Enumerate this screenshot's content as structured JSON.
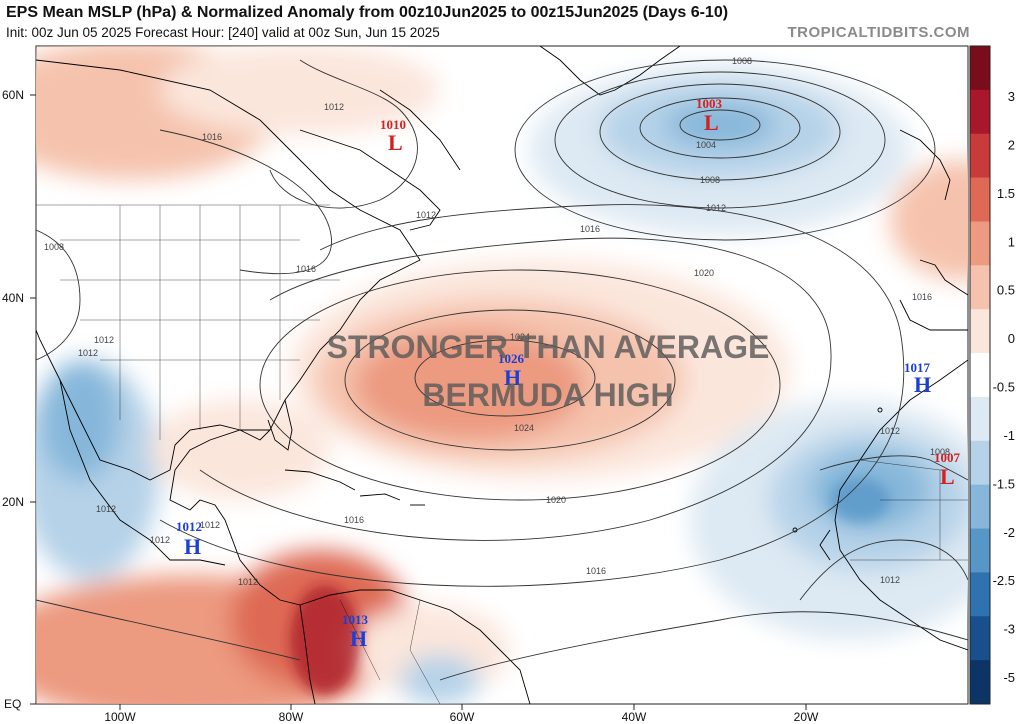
{
  "header": {
    "title": "EPS Mean MSLP (hPa) & Normalized Anomaly from 00z10Jun2025 to 00z15Jun2025 (Days 6-10)",
    "subtitle": "Init: 00z Jun 05 2025   Forecast Hour: [240]   valid at 00z Sun, Jun 15 2025",
    "brand": "TROPICALTIDBITS.COM"
  },
  "map": {
    "lat_ticks": [
      "60N",
      "40N",
      "20N",
      "EQ"
    ],
    "lon_ticks": [
      "100W",
      "80W",
      "60W",
      "40W",
      "20W"
    ],
    "overlay_text": [
      "STRONGER THAN AVERAGE",
      "BERMUDA HIGH"
    ],
    "isobar_labels": [
      "1008",
      "1004",
      "1008",
      "1012",
      "1016",
      "1020",
      "1024",
      "1024",
      "1020",
      "1016",
      "1016",
      "1012",
      "1016",
      "1012",
      "1008",
      "1012",
      "1012",
      "1016",
      "1012",
      "1012",
      "1008",
      "1012",
      "1012",
      "1016",
      "1012",
      "1012"
    ],
    "pressure_centers": [
      {
        "type": "L",
        "value": "1010",
        "color": "#d42020"
      },
      {
        "type": "L",
        "value": "1003",
        "color": "#d42020"
      },
      {
        "type": "H",
        "value": "1026",
        "color": "#1a3fd6"
      },
      {
        "type": "H",
        "value": "1017",
        "color": "#1a3fd6"
      },
      {
        "type": "L",
        "value": "1007",
        "color": "#d42020"
      },
      {
        "type": "H",
        "value": "1012",
        "color": "#1a3fd6"
      },
      {
        "type": "H",
        "value": "1013",
        "color": "#1a3fd6"
      }
    ]
  },
  "colorbar": {
    "labels": [
      "3",
      "2",
      "1.5",
      "1",
      "0.5",
      "0",
      "-0.5",
      "-1",
      "-1.5",
      "-2",
      "-2.5",
      "-3",
      "-5"
    ],
    "colors": [
      "#7a0d1c",
      "#a8172a",
      "#c93a3a",
      "#de6a55",
      "#ec9a80",
      "#f5c3ad",
      "#fbe6dc",
      "#ffffff",
      "#dde9f3",
      "#b5d2e8",
      "#86b7da",
      "#5797c8",
      "#2e72b0",
      "#18508e",
      "#0c3466"
    ]
  }
}
